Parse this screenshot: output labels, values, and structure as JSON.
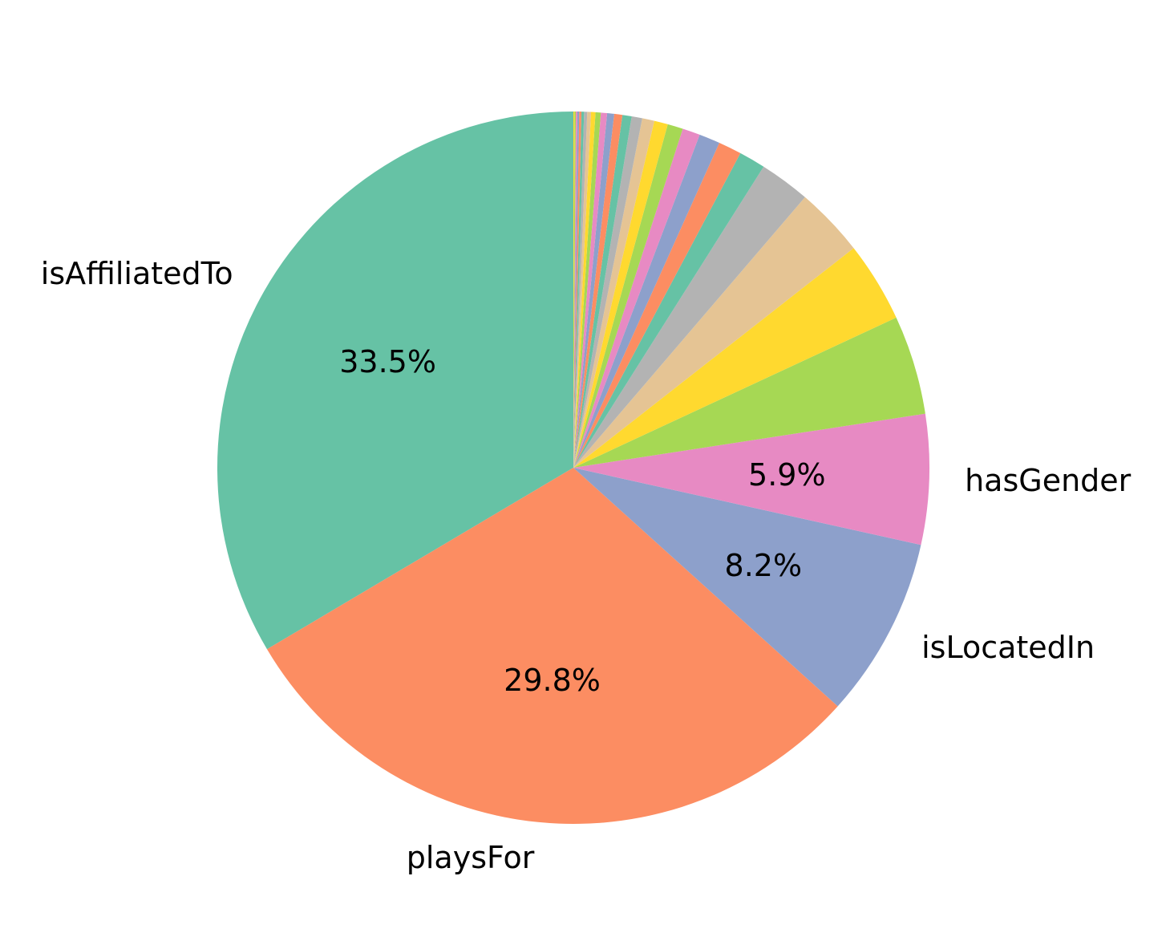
{
  "chart_data": {
    "type": "pie",
    "start": "top",
    "direction": "counterclockwise",
    "colors": [
      "#66c2a5",
      "#fc8d62",
      "#8da0cb",
      "#e78ac3",
      "#a6d854",
      "#ffd92f",
      "#e5c494",
      "#b3b3b3"
    ],
    "slices": [
      {
        "label": "isAffiliatedTo",
        "value": 33.5,
        "pct_text": "33.5%"
      },
      {
        "label": "playsFor",
        "value": 29.8,
        "pct_text": "29.8%"
      },
      {
        "label": "isLocatedIn",
        "value": 8.2,
        "pct_text": "8.2%"
      },
      {
        "label": "hasGender",
        "value": 5.9,
        "pct_text": "5.9%"
      },
      {
        "label": "",
        "value": 4.5
      },
      {
        "label": "",
        "value": 3.65
      },
      {
        "label": "",
        "value": 3.15
      },
      {
        "label": "",
        "value": 2.3
      },
      {
        "label": "",
        "value": 1.2
      },
      {
        "label": "",
        "value": 1.05
      },
      {
        "label": "",
        "value": 0.95
      },
      {
        "label": "",
        "value": 0.8
      },
      {
        "label": "",
        "value": 0.7
      },
      {
        "label": "",
        "value": 0.62
      },
      {
        "label": "",
        "value": 0.55
      },
      {
        "label": "",
        "value": 0.48
      },
      {
        "label": "",
        "value": 0.42
      },
      {
        "label": "",
        "value": 0.37
      },
      {
        "label": "",
        "value": 0.32
      },
      {
        "label": "",
        "value": 0.28
      },
      {
        "label": "",
        "value": 0.24
      },
      {
        "label": "",
        "value": 0.2
      },
      {
        "label": "",
        "value": 0.17
      },
      {
        "label": "",
        "value": 0.14
      },
      {
        "label": "",
        "value": 0.12
      },
      {
        "label": "",
        "value": 0.1
      },
      {
        "label": "",
        "value": 0.08
      },
      {
        "label": "",
        "value": 0.07
      },
      {
        "label": "",
        "value": 0.06
      },
      {
        "label": "",
        "value": 0.05
      }
    ]
  }
}
